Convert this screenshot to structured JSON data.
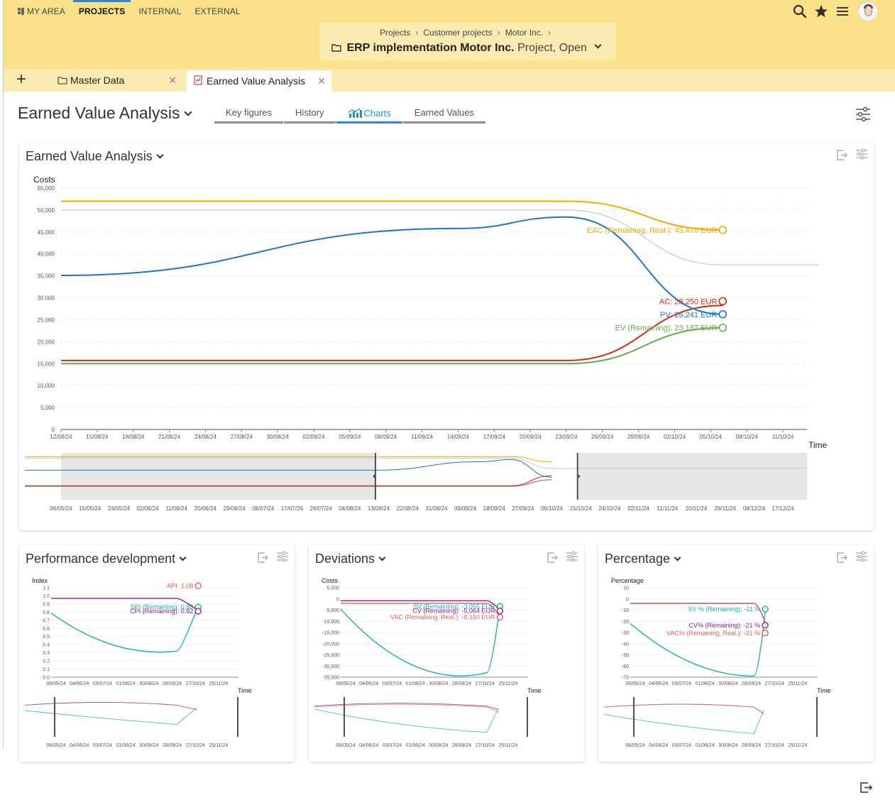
{
  "topnav": {
    "items": [
      {
        "label": "MY AREA",
        "active": false
      },
      {
        "label": "PROJECTS",
        "active": true
      },
      {
        "label": "INTERNAL",
        "active": false
      },
      {
        "label": "EXTERNAL",
        "active": false
      }
    ]
  },
  "header_icons": [
    "search-icon",
    "star-icon",
    "menu-icon",
    "avatar"
  ],
  "breadcrumb": [
    "Projects",
    "Customer projects",
    "Motor Inc."
  ],
  "project": {
    "name": "ERP implementation Motor Inc.",
    "subtitle": "Project, Open"
  },
  "tabs": [
    {
      "label": "Master Data",
      "icon": "folder-icon",
      "active": false
    },
    {
      "label": "Earned Value Analysis",
      "icon": "chart-doc-icon",
      "active": true
    }
  ],
  "page": {
    "title": "Earned Value Analysis",
    "subtabs": [
      {
        "label": "Key figures",
        "active": false
      },
      {
        "label": "History",
        "active": false
      },
      {
        "label": "Charts",
        "active": true
      },
      {
        "label": "Earned Values",
        "active": false
      }
    ]
  },
  "colors": {
    "EAC": "#f5a800",
    "AC": "#d42a12",
    "PV": "#1c74d0",
    "EV": "#6aa84f",
    "BAC": "#c8c8c8",
    "SPI": "#17b0a7",
    "CPI": "#8e1f8a",
    "API": "#e06060",
    "header_bg": "#fbe08a",
    "accent": "#2d8ad8"
  },
  "chart_data": [
    {
      "type": "line",
      "card_title": "Earned Value Analysis",
      "ylabel": "Costs",
      "xlabel": "Time",
      "ylim": [
        0,
        55000
      ],
      "yticks": [
        "55,000",
        "50,000",
        "45,000",
        "40,000",
        "35,000",
        "30,000",
        "25,000",
        "20,000",
        "15,000",
        "10,000",
        "5,000",
        "0"
      ],
      "xticks": [
        "12/08/24",
        "15/08/24",
        "18/08/24",
        "21/08/24",
        "24/08/24",
        "27/08/24",
        "30/08/24",
        "02/09/24",
        "05/09/24",
        "08/09/24",
        "11/09/24",
        "14/09/24",
        "17/09/24",
        "20/09/24",
        "23/09/24",
        "26/09/24",
        "29/09/24",
        "02/10/24",
        "05/10/24",
        "08/10/24",
        "11/10/24"
      ],
      "grid": "horizontal dotted",
      "series": [
        {
          "name": "EAC (Remaining, Real.)",
          "label": "EAC (Remaining, Real.): 45,470 EUR",
          "x": [
            "12/08/24",
            "23/09/24",
            "06/10/24"
          ],
          "values": [
            52000,
            52000,
            45470
          ]
        },
        {
          "name": "AC",
          "label": "AC: 28,250 EUR",
          "x": [
            "12/08/24",
            "23/09/24",
            "06/10/24"
          ],
          "values": [
            15700,
            15700,
            28250
          ]
        },
        {
          "name": "PV",
          "label": "PV: 26,241 EUR",
          "x": [
            "12/08/24",
            "14/09/24",
            "23/09/24",
            "06/10/24"
          ],
          "values": [
            35100,
            45800,
            48400,
            26241
          ]
        },
        {
          "name": "EV (Remaining)",
          "label": "EV (Remaining): 23,187 EUR",
          "x": [
            "12/08/24",
            "23/09/24",
            "06/10/24"
          ],
          "values": [
            15000,
            15000,
            23187
          ]
        },
        {
          "x": [
            "12/08/24",
            "23/09/24",
            "06/10/24",
            "14/10/24"
          ],
          "values": [
            50000,
            50000,
            37500,
            37500
          ]
        }
      ],
      "navigator": {
        "xticks": [
          "06/05/24",
          "15/05/24",
          "24/05/24",
          "02/06/24",
          "11/06/24",
          "20/06/24",
          "29/06/24",
          "08/07/24",
          "17/07/24",
          "26/07/24",
          "04/08/24",
          "13/08/24",
          "22/08/24",
          "31/08/24",
          "09/09/24",
          "18/09/24",
          "27/09/24",
          "06/10/24",
          "15/10/24",
          "24/10/24",
          "02/11/24",
          "11/11/24",
          "20/11/24",
          "29/11/24",
          "08/12/24",
          "17/12/24"
        ],
        "range": [
          "12/08/24",
          "14/10/24"
        ]
      }
    },
    {
      "type": "line",
      "card_title": "Performance development",
      "ylabel": "Index",
      "xlabel": "Time",
      "ylim": [
        0,
        1.1
      ],
      "yticks": [
        "1.1",
        "1.0",
        "0.9",
        "0.8",
        "0.7",
        "0.6",
        "0.5",
        "0.4",
        "0.3",
        "0.2",
        "0.1",
        "0.0"
      ],
      "xticks": [
        "06/05/24",
        "04/06/24",
        "03/07/24",
        "01/08/24",
        "30/08/24",
        "28/09/24",
        "27/10/24",
        "25/11/24"
      ],
      "series": [
        {
          "name": "API",
          "label": "API: 1.08",
          "values": [
            1.08
          ]
        },
        {
          "name": "SPI (Remaining)",
          "label": "SPI (Remaining): 0.88",
          "values": [
            0.79,
            0.32,
            0.88
          ]
        },
        {
          "name": "CPI (Remaining)",
          "label": "CPI (Remaining): 0.82",
          "values": [
            0.97,
            0.97,
            0.82
          ]
        }
      ],
      "navigator": {
        "xticks": [
          "06/05/24",
          "04/06/24",
          "03/07/24",
          "01/08/24",
          "30/08/24",
          "28/09/24",
          "27/10/24",
          "25/11/24"
        ]
      }
    },
    {
      "type": "line",
      "card_title": "Deviations",
      "ylabel": "Costs",
      "xlabel": "Time",
      "ylim": [
        -35000,
        5000
      ],
      "yticks": [
        "5,000",
        "0",
        "-5,000",
        "-10,000",
        "-15,000",
        "-20,000",
        "-25,000",
        "-30,000",
        "-35,000"
      ],
      "xticks": [
        "06/05/24",
        "04/06/24",
        "03/07/24",
        "01/08/24",
        "30/08/24",
        "28/09/24",
        "27/10/24",
        "25/11/24"
      ],
      "series": [
        {
          "name": "SV (Remaining)",
          "label": "SV (Remaining): -3,055 EUR",
          "values": [
            -4500,
            -33000,
            -3055
          ]
        },
        {
          "name": "CV (Remaining)",
          "label": "CV (Remaining): -5,064 EUR",
          "values": [
            -800,
            -800,
            -5064
          ]
        },
        {
          "name": "VAC (Remaining, Real.)",
          "label": "VAC (Remaining, Real.): -8,150 EUR",
          "values": [
            -2000,
            -2000,
            -8150
          ]
        }
      ],
      "navigator": {
        "xticks": [
          "06/05/24",
          "04/06/24",
          "03/07/24",
          "01/08/24",
          "30/08/24",
          "28/09/24",
          "27/10/24",
          "25/11/24"
        ]
      }
    },
    {
      "type": "line",
      "card_title": "Percentage",
      "ylabel": "Percentage",
      "xlabel": "Time",
      "ylim": [
        -70,
        10
      ],
      "yticks": [
        "10",
        "0",
        "-10",
        "-20",
        "-30",
        "-40",
        "-50",
        "-60",
        "-70"
      ],
      "xticks": [
        "06/05/24",
        "04/06/24",
        "03/07/24",
        "01/08/24",
        "30/08/24",
        "28/09/24",
        "27/10/24",
        "25/11/24"
      ],
      "series": [
        {
          "name": "SV % (Remaining)",
          "label": "SV % (Remaining): -11 %",
          "values": [
            -22,
            -69,
            -11
          ]
        },
        {
          "name": "CV% (Remaining)",
          "label": "CV% (Remaining): -21 %",
          "values": [
            -4,
            -4,
            -21
          ]
        },
        {
          "name": "VAC% (Remaining, Real.)",
          "label": "VAC% (Remaining, Real.): -21 %",
          "values": [
            -4,
            -4,
            -21
          ]
        }
      ],
      "navigator": {
        "xticks": [
          "06/05/24",
          "04/06/24",
          "03/07/24",
          "01/08/24",
          "30/08/24",
          "28/09/24",
          "27/10/24",
          "25/11/24"
        ]
      }
    }
  ]
}
